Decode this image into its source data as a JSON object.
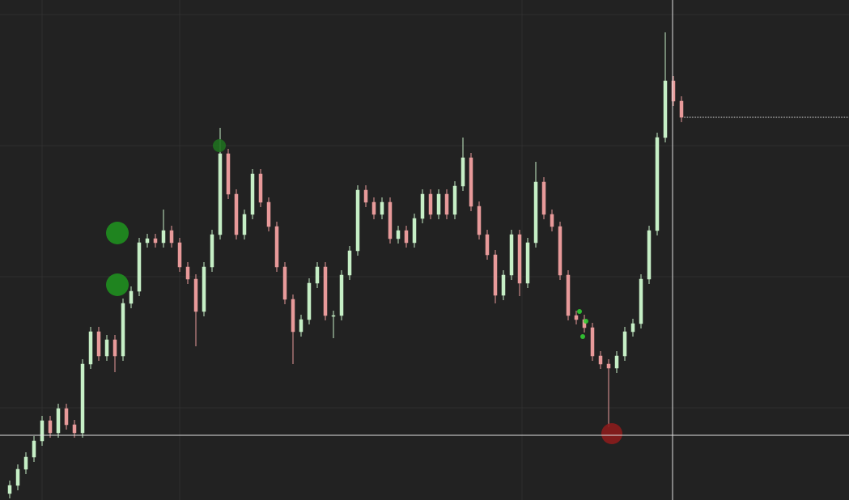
{
  "chart_data": {
    "type": "candlestick",
    "open": [
      8,
      18,
      38,
      53,
      73,
      98,
      83,
      113,
      93,
      83,
      168,
      208,
      178,
      198,
      178,
      243,
      258,
      318,
      323,
      318,
      333,
      318,
      288,
      273,
      233,
      288,
      328,
      428,
      378,
      328,
      353,
      403,
      368,
      338,
      288,
      248,
      208,
      223,
      268,
      288,
      228,
      228,
      278,
      308,
      383,
      368,
      353,
      368,
      323,
      333,
      318,
      348,
      378,
      353,
      378,
      353,
      388,
      423,
      363,
      328,
      303,
      253,
      278,
      328,
      268,
      318,
      393,
      353,
      338,
      278,
      228,
      223,
      213,
      178,
      168,
      163,
      178,
      208,
      218,
      273,
      333,
      448,
      518,
      493
    ],
    "high": [
      24,
      44,
      59,
      79,
      104,
      104,
      119,
      119,
      99,
      174,
      214,
      214,
      204,
      204,
      249,
      264,
      324,
      329,
      329,
      359,
      339,
      324,
      294,
      279,
      294,
      334,
      460,
      434,
      384,
      359,
      409,
      409,
      374,
      344,
      294,
      254,
      229,
      274,
      294,
      294,
      234,
      284,
      314,
      389,
      389,
      374,
      374,
      374,
      339,
      339,
      354,
      384,
      384,
      384,
      384,
      394,
      448,
      429,
      369,
      334,
      309,
      284,
      334,
      334,
      324,
      418,
      399,
      359,
      344,
      284,
      234,
      229,
      219,
      184,
      174,
      184,
      214,
      224,
      279,
      339,
      454,
      578,
      524,
      499
    ],
    "low": [
      2,
      12,
      32,
      47,
      67,
      77,
      77,
      87,
      77,
      77,
      162,
      172,
      172,
      158,
      172,
      237,
      252,
      312,
      312,
      312,
      312,
      282,
      267,
      190,
      227,
      282,
      322,
      372,
      322,
      322,
      347,
      362,
      332,
      282,
      242,
      168,
      202,
      217,
      262,
      222,
      200,
      222,
      272,
      302,
      362,
      347,
      347,
      317,
      317,
      312,
      312,
      342,
      347,
      347,
      347,
      347,
      382,
      357,
      322,
      297,
      243,
      247,
      272,
      252,
      262,
      312,
      347,
      332,
      272,
      222,
      217,
      207,
      172,
      162,
      90,
      157,
      172,
      202,
      212,
      267,
      327,
      442,
      487,
      467
    ],
    "close": [
      18,
      38,
      53,
      73,
      98,
      83,
      113,
      93,
      83,
      168,
      208,
      178,
      198,
      178,
      243,
      258,
      318,
      323,
      318,
      333,
      318,
      288,
      273,
      233,
      288,
      328,
      428,
      378,
      328,
      353,
      403,
      368,
      338,
      288,
      248,
      208,
      223,
      268,
      288,
      228,
      228,
      278,
      308,
      383,
      368,
      353,
      368,
      323,
      333,
      318,
      348,
      378,
      353,
      378,
      353,
      388,
      423,
      363,
      328,
      303,
      253,
      278,
      328,
      268,
      318,
      393,
      353,
      338,
      278,
      228,
      223,
      213,
      178,
      168,
      163,
      178,
      208,
      218,
      273,
      333,
      448,
      518,
      493,
      473
    ],
    "up_color": "#c6efc6",
    "down_color": "#e89a9a",
    "xlim": [
      -1.2,
      103.7
    ],
    "ylim": [
      0,
      618
    ],
    "xticks": [
      4,
      21,
      63.3
    ],
    "yticks": [
      114,
      276,
      438,
      600
    ],
    "grid": true,
    "markers": [
      {
        "x": 13.3,
        "value": 330,
        "size": 14,
        "color": "#1f8f1f"
      },
      {
        "x": 13.3,
        "value": 266,
        "size": 14,
        "color": "#1f8f1f"
      },
      {
        "x": 25.9,
        "value": 438,
        "size": 8,
        "color": "#1f6f1f"
      },
      {
        "x": 70.4,
        "value": 233,
        "size": 3,
        "color": "#33cc33"
      },
      {
        "x": 71.2,
        "value": 221,
        "size": 3,
        "color": "#33cc33"
      },
      {
        "x": 70.8,
        "value": 202,
        "size": 3,
        "color": "#33cc33"
      },
      {
        "x": 74.4,
        "value": 82,
        "size": 13,
        "color": "#8b1c1c"
      }
    ],
    "crosshair": {
      "x": 81.9,
      "y": 80
    }
  }
}
